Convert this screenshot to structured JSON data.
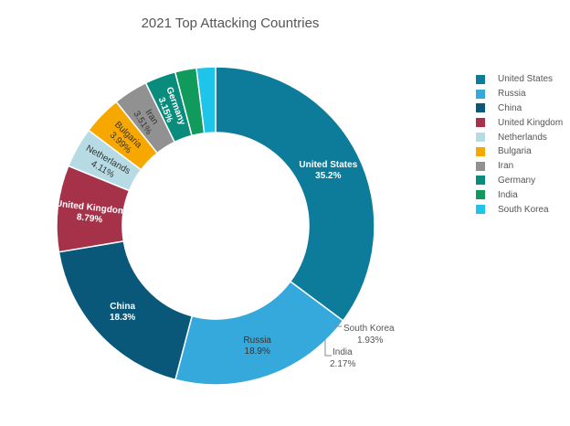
{
  "chart_data": {
    "type": "pie",
    "title": "2021 Top Attacking Countries",
    "legend_position": "right",
    "donut": true,
    "slices": [
      {
        "label": "United States",
        "value": 35.2,
        "value_label": "35.2%",
        "color": "#0d7b9a"
      },
      {
        "label": "Russia",
        "value": 18.9,
        "value_label": "18.9%",
        "color": "#36a9dc"
      },
      {
        "label": "China",
        "value": 18.3,
        "value_label": "18.3%",
        "color": "#09587a"
      },
      {
        "label": "United Kingdom",
        "value": 8.79,
        "value_label": "8.79%",
        "color": "#a6324a"
      },
      {
        "label": "Netherlands",
        "value": 4.11,
        "value_label": "4.11%",
        "color": "#b7dbe4"
      },
      {
        "label": "Bulgaria",
        "value": 3.99,
        "value_label": "3.99%",
        "color": "#f7a800"
      },
      {
        "label": "Iran",
        "value": 3.51,
        "value_label": "3.51%",
        "color": "#919191"
      },
      {
        "label": "Germany",
        "value": 3.15,
        "value_label": "3.15%",
        "color": "#0a8c7c"
      },
      {
        "label": "India",
        "value": 2.17,
        "value_label": "2.17%",
        "color": "#109a5c"
      },
      {
        "label": "South Korea",
        "value": 1.93,
        "value_label": "1.93%",
        "color": "#1ec4ea"
      }
    ]
  }
}
